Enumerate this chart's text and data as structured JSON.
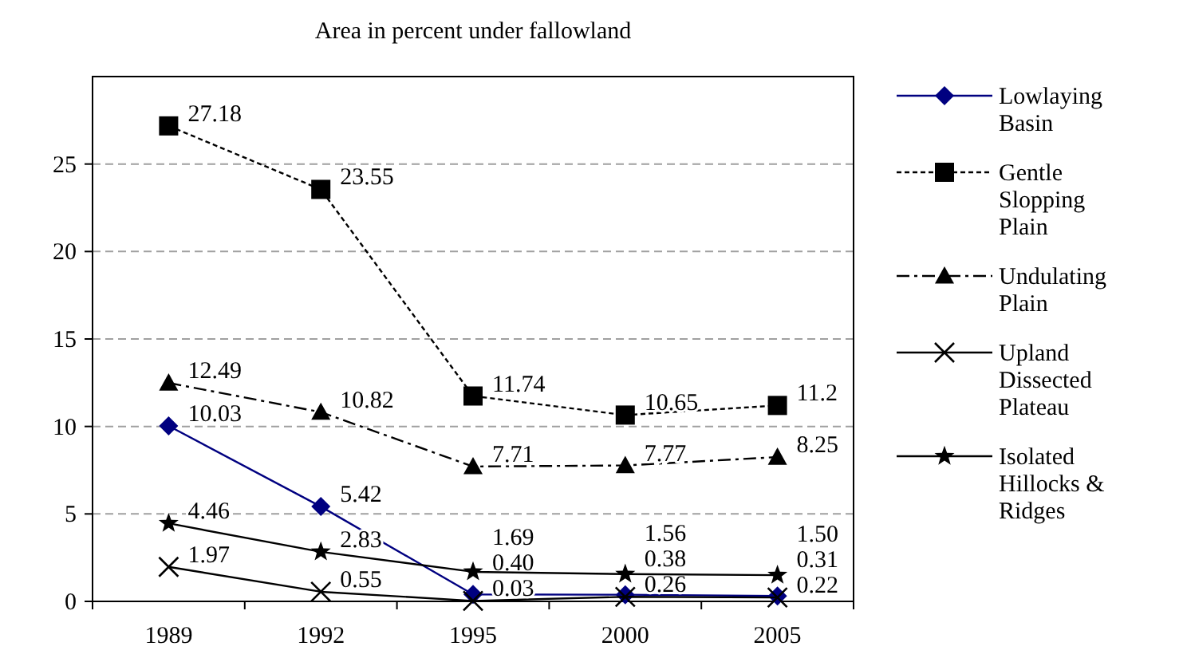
{
  "chart_data": {
    "type": "line",
    "title": "Area in percent under fallowland",
    "categories": [
      "1989",
      "1992",
      "1995",
      "2000",
      "2005"
    ],
    "ylim": [
      0,
      30
    ],
    "yticks": [
      0,
      5,
      10,
      15,
      20,
      25
    ],
    "grid": "y",
    "legend": "right",
    "data_labels": true,
    "series": [
      {
        "name": "Lowlaying Basin",
        "color": "#000080",
        "marker": "diamond",
        "line_style": "solid",
        "values": [
          10.03,
          5.42,
          0.4,
          0.38,
          0.31
        ],
        "value_labels": [
          "10.03",
          "5.42",
          "0.40",
          "0.38",
          "0.31"
        ]
      },
      {
        "name": "Gentle Slopping Plain",
        "color": "#000000",
        "marker": "square",
        "line_style": "dashed",
        "values": [
          27.18,
          23.55,
          11.74,
          10.65,
          11.2
        ],
        "value_labels": [
          "27.18",
          "23.55",
          "11.74",
          "10.65",
          "11.2"
        ]
      },
      {
        "name": "Undulating Plain",
        "color": "#000000",
        "marker": "triangle",
        "line_style": "dashdot",
        "values": [
          12.49,
          10.82,
          7.71,
          7.77,
          8.25
        ],
        "value_labels": [
          "12.49",
          "10.82",
          "7.71",
          "7.77",
          "8.25"
        ]
      },
      {
        "name": "Upland Dissected Plateau",
        "color": "#000000",
        "marker": "cross",
        "line_style": "solid",
        "values": [
          1.97,
          0.55,
          0.03,
          0.26,
          0.22
        ],
        "value_labels": [
          "1.97",
          "0.55",
          "0.03",
          "0.26",
          "0.22"
        ]
      },
      {
        "name": "Isolated Hillocks & Ridges",
        "color": "#000000",
        "marker": "star",
        "line_style": "solid",
        "values": [
          4.46,
          2.83,
          1.69,
          1.56,
          1.5
        ],
        "value_labels": [
          "4.46",
          "2.83",
          "1.69",
          "1.56",
          "1.50"
        ]
      }
    ]
  }
}
